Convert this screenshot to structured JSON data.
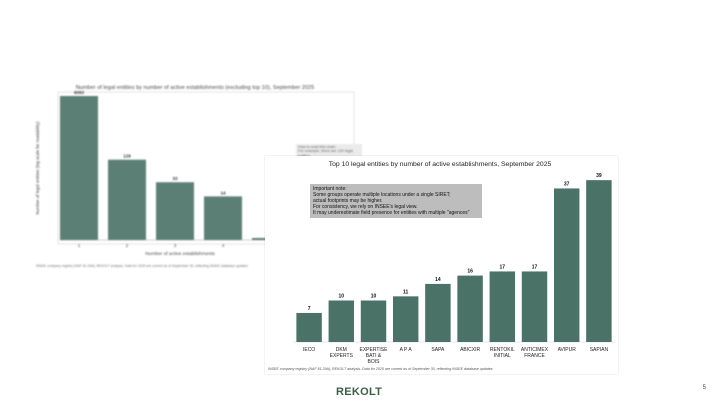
{
  "slide": {
    "page_number": "5",
    "logo_text": "REKOLT"
  },
  "colors": {
    "bar": "#4a7267",
    "note_bg": "#bdbdbd",
    "logo": "#3c5f4c"
  },
  "chart_data": [
    {
      "type": "bar",
      "title": "Number of legal entities by number of active establishments (excluding top 10), September 2025",
      "xlabel": "Number of active establishments",
      "ylabel": "Number of legal entities (log scale for readability)",
      "yscale": "log",
      "categories": [
        "1",
        "2",
        "3",
        "4",
        "5"
      ],
      "values": [
        6093,
        129,
        33,
        14,
        2
      ],
      "data_labels": [
        "6093",
        "129",
        "33",
        "14",
        ""
      ],
      "source": "INSEE company registry (NAF 81.29A); REKOLT analysis. Data for 2025 are current as of September 30, reflecting INSEE database updates",
      "note": [
        "How to read this chart:",
        "For example, there are 129 legal entities",
        "with 2 active establishments."
      ],
      "grid": false
    },
    {
      "type": "bar",
      "title": "Top 10 legal entities by number of active establishments, September 2025",
      "categories": [
        "IECO",
        "DKM\nEXPERTS",
        "EXPERTISE\nBATI &\nBOIS",
        "A P A",
        "SAPA",
        "ABICXIR",
        "RENTOKIL\nINITIAL",
        "ANTICIMEX\nFRANCE",
        "AVIPUR",
        "SAPIAN"
      ],
      "values": [
        7,
        10,
        10,
        11,
        14,
        16,
        17,
        17,
        37,
        39
      ],
      "ylim": [
        0,
        40
      ],
      "note": [
        "Important note:",
        "Some groups operate multiple locations under a single SIRET;",
        "actual footprints may be higher.",
        "For consistency, we rely on INSEE's legal view.",
        "It may underestimate field presence for entities with multiple \"agences\""
      ],
      "source": "INSEE company registry (NAF 81.29A); REKOLT analysis. Data for 2025 are current as of September 30, reflecting INSEE database updates",
      "grid": false,
      "legend": "none"
    }
  ]
}
